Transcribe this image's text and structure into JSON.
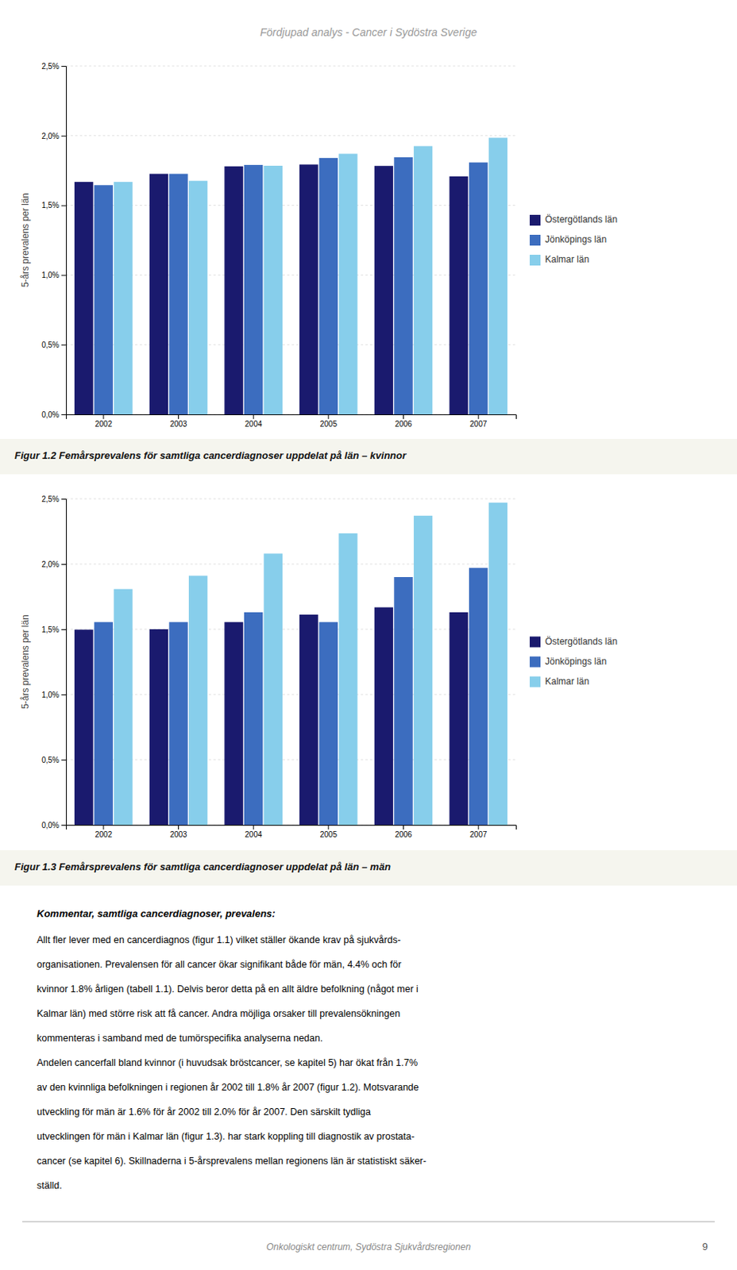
{
  "header_title": "Fördjupad analys - Cancer i Sydöstra Sverige",
  "footer_title": "Onkologiskt centrum, Sydöstra Sjukvårdsregionen",
  "page_number": "9",
  "chart_data": [
    {
      "type": "bar",
      "title": "Figur 1.2 Femårsprevalens för samtliga cancerdiagnoser uppdelat på län – kvinnor",
      "ylabel": "5-års prevalens per län",
      "categories": [
        "2002",
        "2003",
        "2004",
        "2005",
        "2006",
        "2007"
      ],
      "series": [
        {
          "name": "Östergötlands län",
          "color": "#1a1a6e",
          "values": [
            1.668,
            1.726,
            1.78,
            1.793,
            1.783,
            1.708
          ]
        },
        {
          "name": "Jönköpings län",
          "color": "#3c6dbf",
          "values": [
            1.645,
            1.726,
            1.79,
            1.84,
            1.845,
            1.808
          ]
        },
        {
          "name": "Kalmar län",
          "color": "#87CEEB",
          "values": [
            1.668,
            1.676,
            1.784,
            1.87,
            1.925,
            1.985
          ]
        }
      ],
      "ylim": [
        0,
        2.5
      ],
      "yticks": [
        {
          "value": 0.0,
          "label": "0,0%"
        },
        {
          "value": 0.5,
          "label": "0,5%"
        },
        {
          "value": 1.0,
          "label": "1,0%"
        },
        {
          "value": 1.5,
          "label": "1,5%"
        },
        {
          "value": 2.0,
          "label": "2,0%"
        },
        {
          "value": 2.5,
          "label": "2,5%"
        }
      ],
      "grid": true,
      "legend": "right"
    },
    {
      "type": "bar",
      "title": "Figur 1.3 Femårsprevalens för samtliga cancerdiagnoser uppdelat på län – män",
      "ylabel": "5-års prevalens per län",
      "categories": [
        "2002",
        "2003",
        "2004",
        "2005",
        "2006",
        "2007"
      ],
      "series": [
        {
          "name": "Östergötlands län",
          "color": "#1a1a6e",
          "values": [
            1.497,
            1.5,
            1.555,
            1.612,
            1.668,
            1.63
          ]
        },
        {
          "name": "Jönköpings län",
          "color": "#3c6dbf",
          "values": [
            1.555,
            1.555,
            1.63,
            1.555,
            1.9,
            1.97
          ]
        },
        {
          "name": "Kalmar län",
          "color": "#87CEEB",
          "values": [
            1.808,
            1.91,
            2.08,
            2.235,
            2.37,
            2.47
          ]
        }
      ],
      "ylim": [
        0,
        2.5
      ],
      "yticks": [
        {
          "value": 0.0,
          "label": "0,0%"
        },
        {
          "value": 0.5,
          "label": "0,5%"
        },
        {
          "value": 1.0,
          "label": "1,0%"
        },
        {
          "value": 1.5,
          "label": "1,5%"
        },
        {
          "value": 2.0,
          "label": "2,0%"
        },
        {
          "value": 2.5,
          "label": "2,5%"
        }
      ],
      "grid": true,
      "legend": "right"
    }
  ],
  "body_text_title": "Kommentar, samtliga cancerdiagnoser, prevalens:",
  "body_text_lines": [
    "Allt fler lever med en cancerdiagnos (figur 1.1) vilket ställer ökande krav på sjukvårds-",
    "organisationen. Prevalensen för all cancer ökar signifikant både för män, 4.4% och för",
    "kvinnor 1.8% årligen (tabell 1.1). Delvis beror detta på en allt äldre befolkning (något mer i",
    "Kalmar län) med större risk att få cancer. Andra möjliga orsaker till prevalensökningen",
    "kommenteras i samband med de tumörspecifika analyserna nedan.",
    "Andelen cancerfall bland kvinnor (i huvudsak bröstcancer, se kapitel 5) har ökat från 1.7%",
    "av den kvinnliga befolkningen i regionen år 2002 till 1.8% år 2007 (figur 1.2). Motsvarande",
    "utveckling för män är 1.6% för år 2002 till 2.0% för år 2007. Den särskilt tydliga",
    "utvecklingen för män i Kalmar län (figur 1.3). har stark koppling till diagnostik av prostata-",
    "cancer (se kapitel 6). Skillnaderna i 5-årsprevalens mellan regionens län är statistiskt säker-",
    "ställd."
  ]
}
